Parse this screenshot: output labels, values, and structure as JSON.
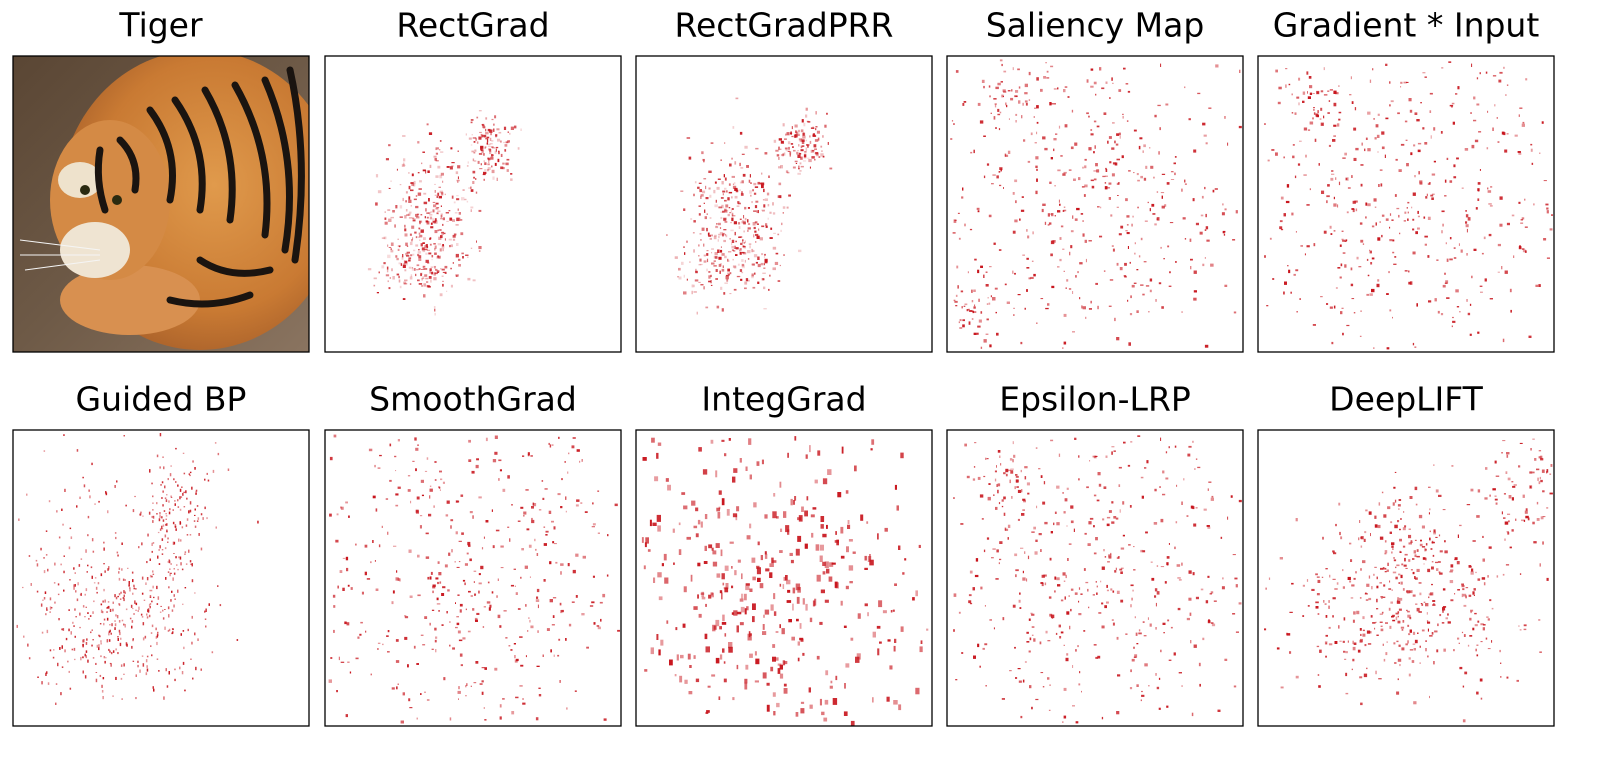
{
  "panels": [
    {
      "title": "Tiger"
    },
    {
      "title": "RectGrad"
    },
    {
      "title": "RectGradPRR"
    },
    {
      "title": "Saliency Map"
    },
    {
      "title": "Gradient * Input"
    },
    {
      "title": "Guided BP"
    },
    {
      "title": "SmoothGrad"
    },
    {
      "title": "IntegGrad"
    },
    {
      "title": "Epsilon-LRP"
    },
    {
      "title": "DeepLIFT"
    }
  ]
}
